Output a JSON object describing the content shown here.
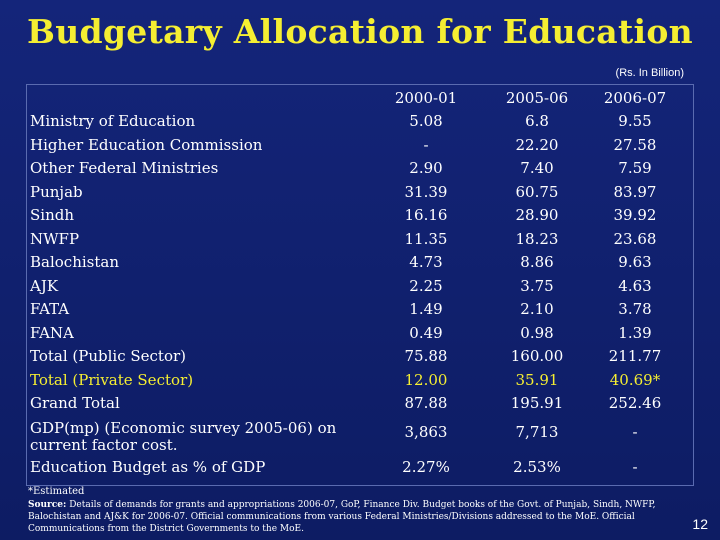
{
  "title": "Budgetary Allocation for Education",
  "unit_note": "(Rs. In Billion)",
  "columns": [
    "2000-01",
    "2005-06",
    "2006-07"
  ],
  "rows": [
    {
      "label": "Ministry of Education",
      "values": [
        "5.08",
        "6.8",
        "9.55"
      ]
    },
    {
      "label": "Higher Education Commission",
      "values": [
        "-",
        "22.20",
        "27.58"
      ]
    },
    {
      "label": "Other Federal Ministries",
      "values": [
        "2.90",
        "7.40",
        "7.59"
      ]
    },
    {
      "label": "Punjab",
      "values": [
        "31.39",
        "60.75",
        "83.97"
      ]
    },
    {
      "label": "Sindh",
      "values": [
        "16.16",
        "28.90",
        "39.92"
      ]
    },
    {
      "label": "NWFP",
      "values": [
        "11.35",
        "18.23",
        "23.68"
      ]
    },
    {
      "label": "Balochistan",
      "values": [
        "4.73",
        "8.86",
        "9.63"
      ]
    },
    {
      "label": "AJK",
      "values": [
        "2.25",
        "3.75",
        "4.63"
      ]
    },
    {
      "label": "FATA",
      "values": [
        "1.49",
        "2.10",
        "3.78"
      ]
    },
    {
      "label": "FANA",
      "values": [
        "0.49",
        "0.98",
        "1.39"
      ]
    },
    {
      "label": "Total (Public Sector)",
      "values": [
        "75.88",
        "160.00",
        "211.77"
      ]
    },
    {
      "label": "Total (Private Sector)",
      "values": [
        "12.00",
        "35.91",
        "40.69*"
      ]
    },
    {
      "label": "Grand Total",
      "values": [
        "87.88",
        "195.91",
        "252.46"
      ]
    },
    {
      "label": "GDP(mp) (Economic survey 2005-06) on current factor cost.",
      "values": [
        "3,863",
        "7,713",
        "-"
      ]
    },
    {
      "label": "Education Budget as % of GDP",
      "values": [
        "2.27%",
        "2.53%",
        "-"
      ]
    }
  ],
  "footnote": "*Estimated",
  "source_label": "Source:",
  "source_text": " Details of demands for grants and appropriations 2006-07, GoP, Finance Div. Budget books of the Govt. of Punjab, Sindh, NWFP, Balochistan and AJ&K for 2006-07. Official communications from various Federal Ministries/Divisions addressed to the MoE. Official Communications from the District Governments to the MoE.",
  "page_number": "12",
  "colors": {
    "background": "#0f1f6b",
    "title": "#f5ee32",
    "highlight": "#f5ee32",
    "text": "#ffffff"
  }
}
